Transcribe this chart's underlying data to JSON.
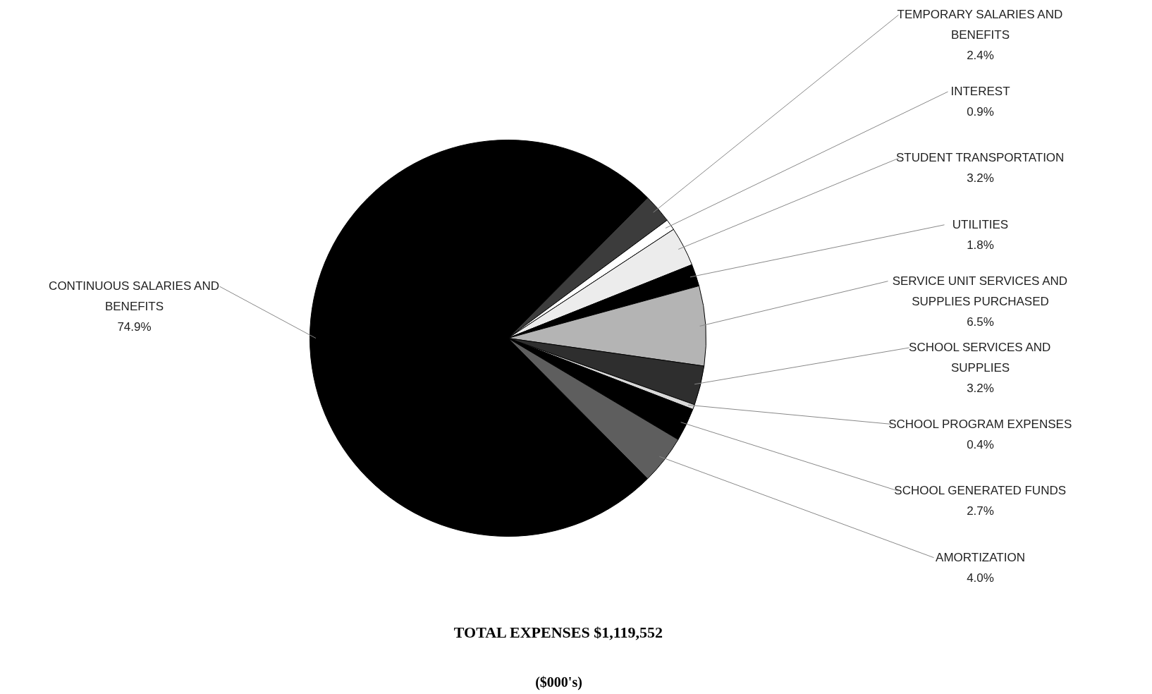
{
  "chart_data": {
    "type": "pie",
    "title": "TOTAL EXPENSES $1,119,552",
    "subtitle": "($000's)",
    "categories": [
      "CONTINUOUS SALARIES AND BENEFITS",
      "TEMPORARY SALARIES AND BENEFITS",
      "INTEREST",
      "STUDENT TRANSPORTATION",
      "UTILITIES",
      "SERVICE UNIT SERVICES AND SUPPLIES PURCHASED",
      "SCHOOL SERVICES AND SUPPLIES",
      "SCHOOL PROGRAM EXPENSES",
      "SCHOOL GENERATED FUNDS",
      "AMORTIZATION"
    ],
    "values": [
      74.9,
      2.4,
      0.9,
      3.2,
      1.8,
      6.5,
      3.2,
      0.4,
      2.7,
      4.0
    ],
    "colors": [
      "#000000",
      "#3c3c3c",
      "#ffffff",
      "#ececec",
      "#000000",
      "#b4b4b4",
      "#2e2e2e",
      "#d8d8d8",
      "#000000",
      "#5e5e5e"
    ],
    "value_labels": [
      "74.9%",
      "2.4%",
      "0.9%",
      "3.2%",
      "1.8%",
      "6.5%",
      "3.2%",
      "0.4%",
      "2.7%",
      "4.0%"
    ]
  }
}
